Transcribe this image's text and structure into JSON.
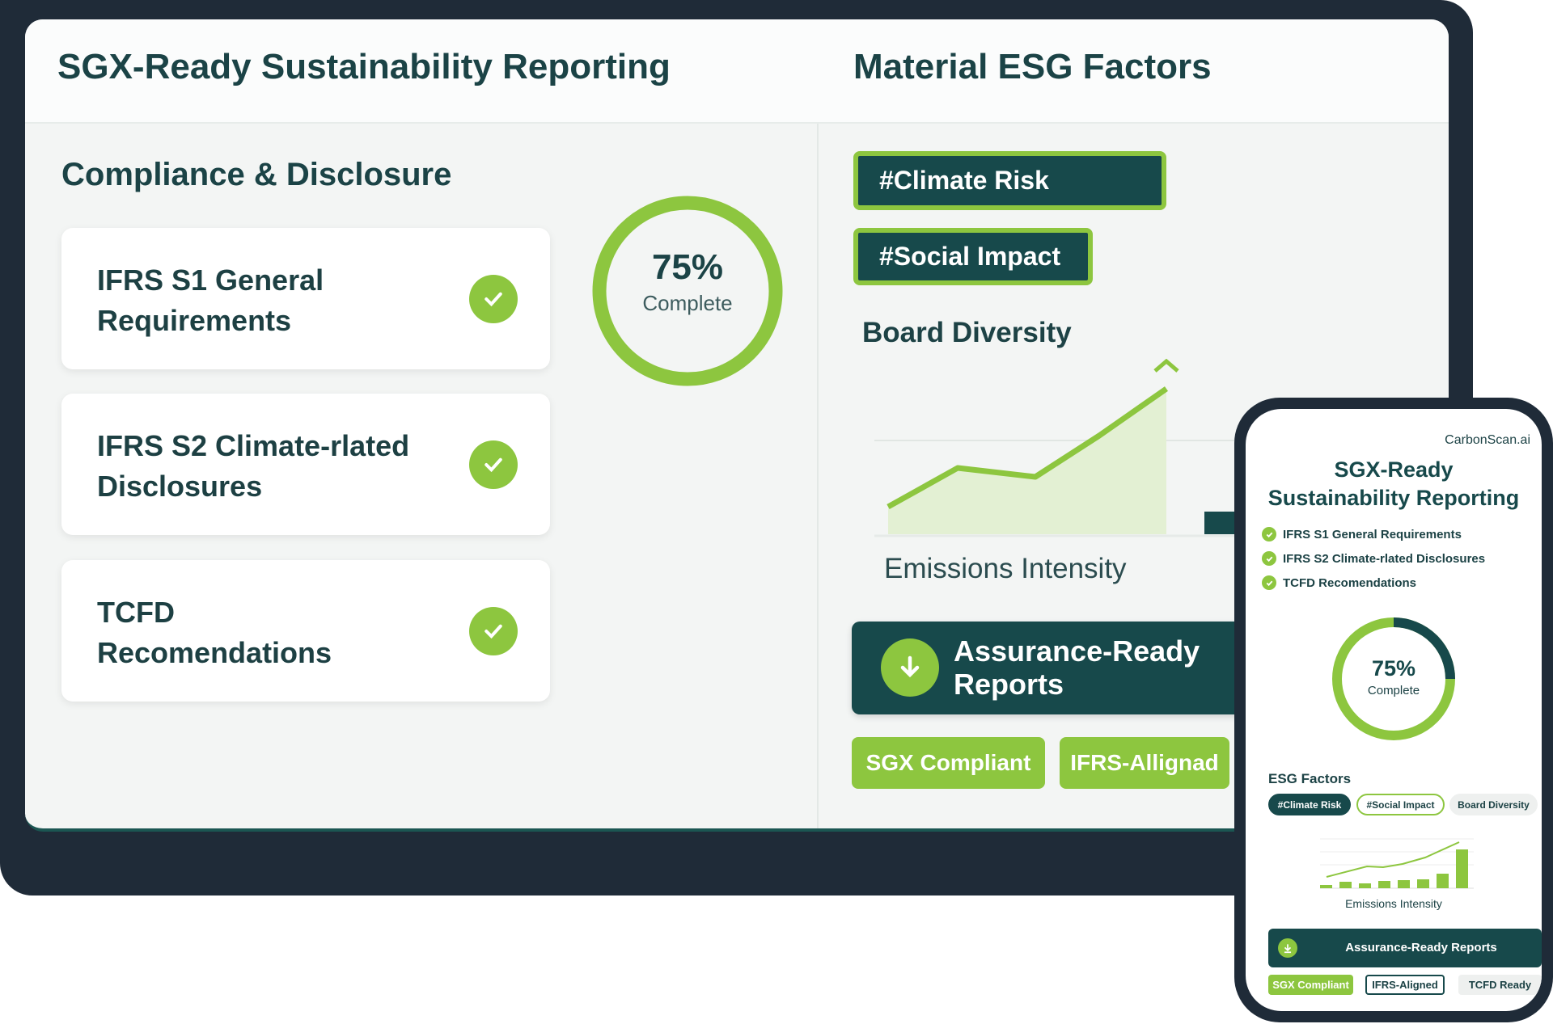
{
  "desktop": {
    "header": {
      "title": "SGX-Ready Sustainability Reporting",
      "right_title": "Material ESG Factors"
    },
    "section_title": "Compliance & Disclosure",
    "checklist": [
      {
        "label": "IFRS S1 General Requirements",
        "done": true
      },
      {
        "label": "IFRS S2 Climate-rlated Disclosures",
        "done": true
      },
      {
        "label": "TCFD Recomendations",
        "done": true
      }
    ],
    "progress": {
      "value": 75,
      "percent_label": "75%",
      "sub_label": "Complete"
    },
    "tags": [
      "#Climate Risk",
      "#Social Impact"
    ],
    "board_diversity": "Board Diversity",
    "chart_label": "Emissions Intensity",
    "report_button": "Assurance-Ready Reports",
    "badges": [
      "SGX Compliant",
      "IFRS-Allignad"
    ]
  },
  "phone": {
    "brand": "CarbonScan.ai",
    "title_line1": "SGX-Ready",
    "title_line2": "Sustainability Reporting",
    "checklist": [
      "IFRS S1 General Requirements",
      "IFRS S2 Climate-rlated Disclosures",
      "TCFD Recomendations"
    ],
    "progress": {
      "value": 75,
      "percent_label": "75%",
      "sub_label": "Complete"
    },
    "esg_title": "ESG Factors",
    "chips": [
      "#Climate Risk",
      "#Social Impact",
      "Board Diversity"
    ],
    "chart_label": "Emissions Intensity",
    "report_button": "Assurance-Ready Reports",
    "badges": [
      "SGX Compliant",
      "IFRS-Aligned",
      "TCFD Ready"
    ]
  },
  "colors": {
    "dark_teal": "#17494b",
    "green": "#8dc63f",
    "frame": "#1f2b38"
  }
}
